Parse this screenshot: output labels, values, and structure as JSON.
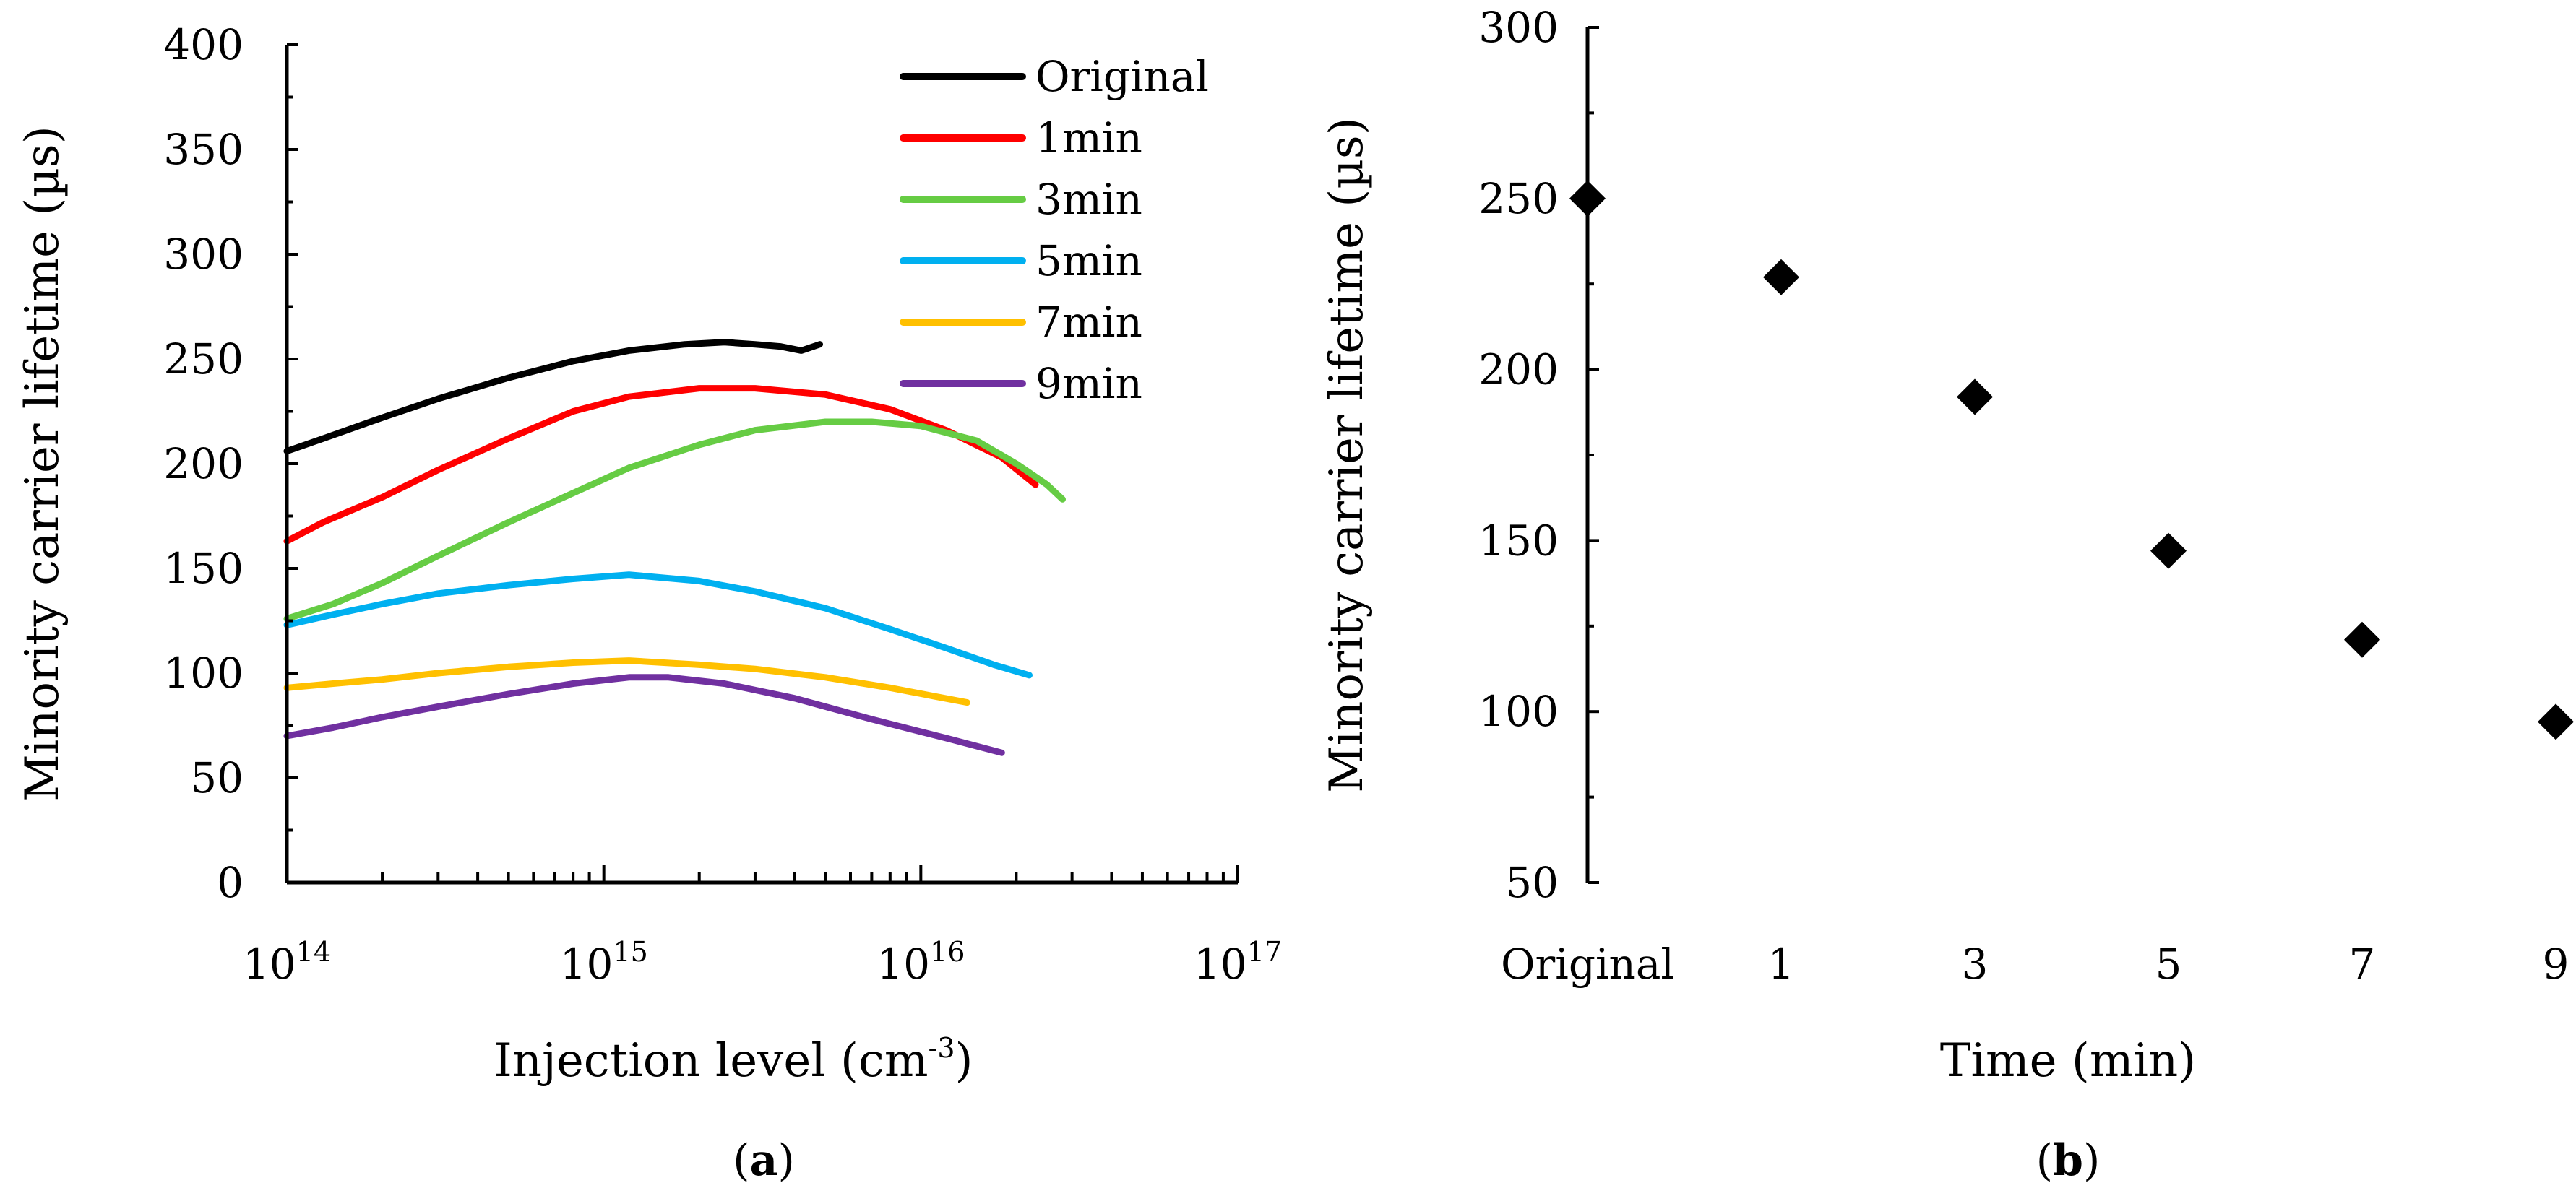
{
  "figure": {
    "panel_a_label": "a",
    "panel_b_label": "b"
  },
  "chart_data": [
    {
      "id": "a",
      "type": "line",
      "title": "",
      "xlabel": "Injection level (cm-3)",
      "xlabel_main": "Injection level (cm",
      "xlabel_sup": "-3",
      "xlabel_end": ")",
      "ylabel": "Minority carrier lifetime (µs)",
      "xscale": "log",
      "xlim": [
        100000000000000.0,
        1e+17
      ],
      "ylim": [
        0,
        400
      ],
      "yticks": [
        0,
        50,
        100,
        150,
        200,
        250,
        300,
        350,
        400
      ],
      "xticks": [
        {
          "base": "10",
          "exp": "14"
        },
        {
          "base": "10",
          "exp": "15"
        },
        {
          "base": "10",
          "exp": "16"
        },
        {
          "base": "10",
          "exp": "17"
        }
      ],
      "legend_position": "top-right",
      "series": [
        {
          "name": "Original",
          "color": "#000000",
          "points": [
            [
              100000000000000.0,
              206
            ],
            [
              130000000000000.0,
              212
            ],
            [
              200000000000000.0,
              222
            ],
            [
              300000000000000.0,
              231
            ],
            [
              500000000000000.0,
              241
            ],
            [
              800000000000000.0,
              249
            ],
            [
              1200000000000000.0,
              254
            ],
            [
              1800000000000000.0,
              257
            ],
            [
              2400000000000000.0,
              258
            ],
            [
              3000000000000000.0,
              257
            ],
            [
              3600000000000000.0,
              256
            ],
            [
              4200000000000000.0,
              254
            ],
            [
              4800000000000000.0,
              257
            ]
          ]
        },
        {
          "name": "1min",
          "color": "#ff0000",
          "points": [
            [
              100000000000000.0,
              163
            ],
            [
              130000000000000.0,
              172
            ],
            [
              200000000000000.0,
              184
            ],
            [
              300000000000000.0,
              197
            ],
            [
              500000000000000.0,
              212
            ],
            [
              800000000000000.0,
              225
            ],
            [
              1200000000000000.0,
              232
            ],
            [
              2000000000000000.0,
              236
            ],
            [
              3000000000000000.0,
              236
            ],
            [
              5000000000000000.0,
              233
            ],
            [
              8000000000000000.0,
              226
            ],
            [
              1.2e+16,
              216
            ],
            [
              1.8e+16,
              203
            ],
            [
              2.3e+16,
              190
            ]
          ]
        },
        {
          "name": "3min",
          "color": "#66cc44",
          "points": [
            [
              100000000000000.0,
              126
            ],
            [
              140000000000000.0,
              133
            ],
            [
              200000000000000.0,
              143
            ],
            [
              300000000000000.0,
              156
            ],
            [
              500000000000000.0,
              172
            ],
            [
              800000000000000.0,
              186
            ],
            [
              1200000000000000.0,
              198
            ],
            [
              2000000000000000.0,
              209
            ],
            [
              3000000000000000.0,
              216
            ],
            [
              5000000000000000.0,
              220
            ],
            [
              7000000000000000.0,
              220
            ],
            [
              1e+16,
              218
            ],
            [
              1.5e+16,
              211
            ],
            [
              2e+16,
              200
            ],
            [
              2.5e+16,
              190
            ],
            [
              2.8e+16,
              183
            ]
          ]
        },
        {
          "name": "5min",
          "color": "#00b0f0",
          "points": [
            [
              100000000000000.0,
              123
            ],
            [
              140000000000000.0,
              128
            ],
            [
              200000000000000.0,
              133
            ],
            [
              300000000000000.0,
              138
            ],
            [
              500000000000000.0,
              142
            ],
            [
              800000000000000.0,
              145
            ],
            [
              1200000000000000.0,
              147
            ],
            [
              2000000000000000.0,
              144
            ],
            [
              3000000000000000.0,
              139
            ],
            [
              5000000000000000.0,
              131
            ],
            [
              8000000000000000.0,
              121
            ],
            [
              1.2e+16,
              112
            ],
            [
              1.7e+16,
              104
            ],
            [
              2.2e+16,
              99
            ]
          ]
        },
        {
          "name": "7min",
          "color": "#ffc000",
          "points": [
            [
              100000000000000.0,
              93
            ],
            [
              140000000000000.0,
              95
            ],
            [
              200000000000000.0,
              97
            ],
            [
              300000000000000.0,
              100
            ],
            [
              500000000000000.0,
              103
            ],
            [
              800000000000000.0,
              105
            ],
            [
              1200000000000000.0,
              106
            ],
            [
              2000000000000000.0,
              104
            ],
            [
              3000000000000000.0,
              102
            ],
            [
              5000000000000000.0,
              98
            ],
            [
              8000000000000000.0,
              93
            ],
            [
              1.1e+16,
              89
            ],
            [
              1.4e+16,
              86
            ]
          ]
        },
        {
          "name": "9min",
          "color": "#7030a0",
          "points": [
            [
              100000000000000.0,
              70
            ],
            [
              140000000000000.0,
              74
            ],
            [
              200000000000000.0,
              79
            ],
            [
              300000000000000.0,
              84
            ],
            [
              500000000000000.0,
              90
            ],
            [
              800000000000000.0,
              95
            ],
            [
              1200000000000000.0,
              98
            ],
            [
              1600000000000000.0,
              98
            ],
            [
              2400000000000000.0,
              95
            ],
            [
              4000000000000000.0,
              88
            ],
            [
              7000000000000000.0,
              78
            ],
            [
              1.2e+16,
              69
            ],
            [
              1.8e+16,
              62
            ]
          ]
        }
      ]
    },
    {
      "id": "b",
      "type": "scatter",
      "title": "",
      "xlabel": "Time (min)",
      "ylabel": "Minority carrier lifetime (µs)",
      "ylim": [
        50,
        300
      ],
      "yticks": [
        50,
        100,
        150,
        200,
        250,
        300
      ],
      "categories": [
        "Original",
        "1",
        "3",
        "5",
        "7",
        "9"
      ],
      "values": [
        250,
        227,
        192,
        147,
        121,
        97
      ],
      "marker": "diamond",
      "color": "#000000"
    }
  ]
}
